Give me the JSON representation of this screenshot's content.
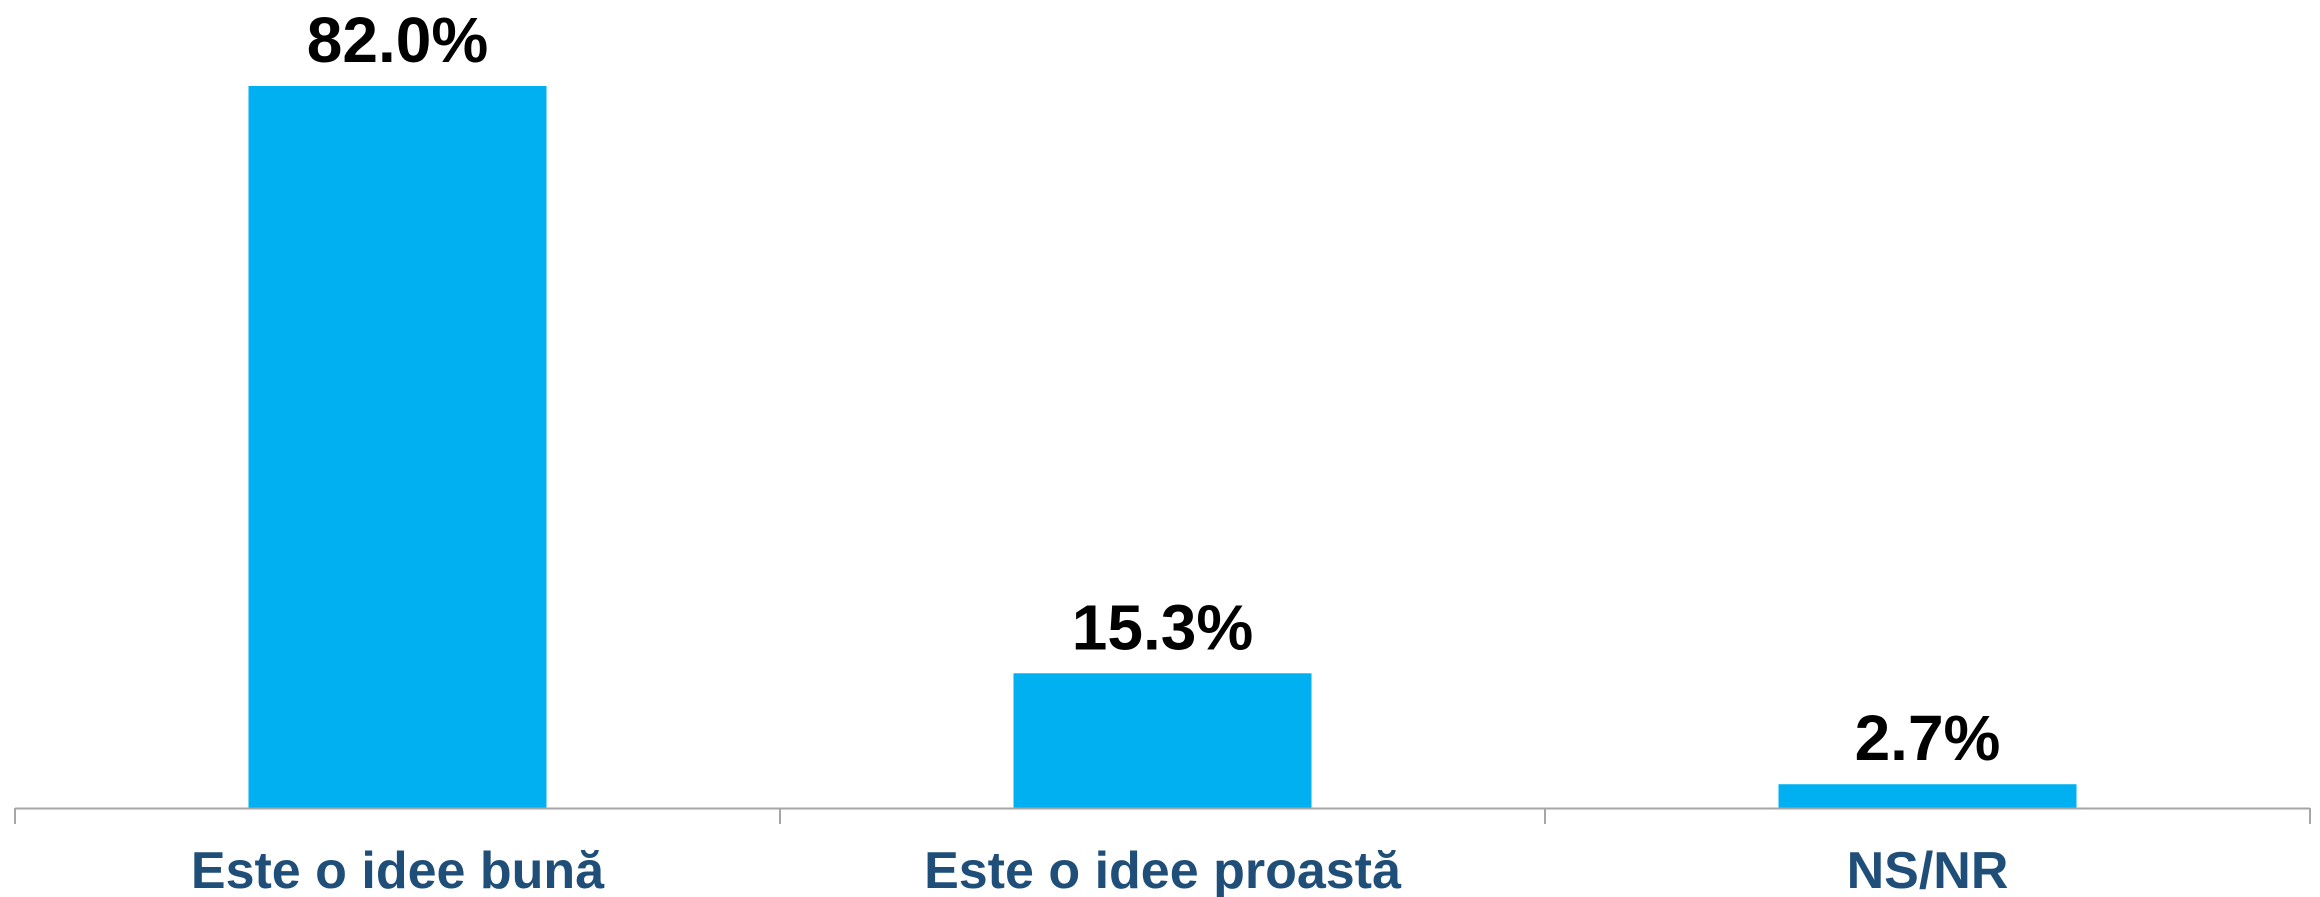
{
  "chart_data": {
    "type": "bar",
    "categories": [
      "Este o idee bună",
      "Este o idee proastă",
      "NS/NR"
    ],
    "values": [
      82.0,
      15.3,
      2.7
    ],
    "data_labels": [
      "82.0%",
      "15.3%",
      "2.7%"
    ],
    "title": "",
    "xlabel": "",
    "ylabel": "",
    "ylim": [
      0,
      82.0
    ],
    "grid": false,
    "legend": "none",
    "colors": {
      "bar": "#00B0F0",
      "axis": "#A6A6A6",
      "category_text": "#1F4E79",
      "value_text": "#000000"
    }
  }
}
